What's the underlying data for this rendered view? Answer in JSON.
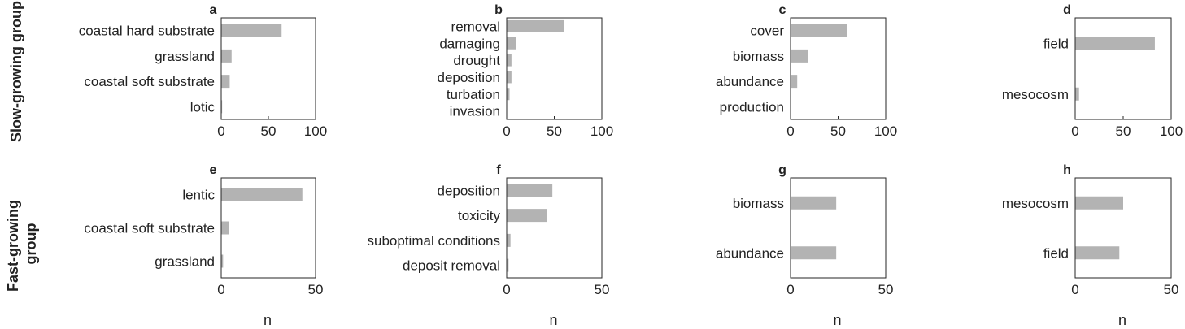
{
  "row_labels": [
    "Slow-growing group",
    "Fast-growing group"
  ],
  "colors": {
    "bar": "#b3b3b3",
    "axis": "#262626"
  },
  "chart_data": [
    {
      "type": "bar",
      "orientation": "horizontal",
      "panel": "a",
      "categories": [
        "coastal hard substrate",
        "grassland",
        "coastal soft substrate",
        "lotic"
      ],
      "values": [
        64,
        11,
        9,
        1
      ],
      "xlim": [
        0,
        100
      ],
      "xticks": [
        0,
        50,
        100
      ],
      "xlabel": ""
    },
    {
      "type": "bar",
      "orientation": "horizontal",
      "panel": "b",
      "categories": [
        "removal",
        "damaging",
        "drought",
        "deposition",
        "turbation",
        "invasion"
      ],
      "values": [
        60,
        10,
        5,
        5,
        3,
        0
      ],
      "xlim": [
        0,
        100
      ],
      "xticks": [
        0,
        50,
        100
      ],
      "xlabel": ""
    },
    {
      "type": "bar",
      "orientation": "horizontal",
      "panel": "c",
      "categories": [
        "cover",
        "biomass",
        "abundance",
        "production"
      ],
      "values": [
        59,
        18,
        7,
        0
      ],
      "xlim": [
        0,
        100
      ],
      "xticks": [
        0,
        50,
        100
      ],
      "xlabel": ""
    },
    {
      "type": "bar",
      "orientation": "horizontal",
      "panel": "d",
      "categories": [
        "field",
        "mesocosm"
      ],
      "values": [
        83,
        4
      ],
      "xlim": [
        0,
        100
      ],
      "xticks": [
        0,
        50,
        100
      ],
      "xlabel": ""
    },
    {
      "type": "bar",
      "orientation": "horizontal",
      "panel": "e",
      "categories": [
        "lentic",
        "coastal soft substrate",
        "grassland"
      ],
      "values": [
        43,
        4,
        1
      ],
      "xlim": [
        0,
        50
      ],
      "xticks": [
        0,
        50
      ],
      "xlabel": "n"
    },
    {
      "type": "bar",
      "orientation": "horizontal",
      "panel": "f",
      "categories": [
        "deposition",
        "toxicity",
        "suboptimal conditions",
        "deposit removal"
      ],
      "values": [
        24,
        21,
        2,
        1
      ],
      "xlim": [
        0,
        50
      ],
      "xticks": [
        0,
        50
      ],
      "xlabel": "n"
    },
    {
      "type": "bar",
      "orientation": "horizontal",
      "panel": "g",
      "categories": [
        "biomass",
        "abundance"
      ],
      "values": [
        24,
        24
      ],
      "xlim": [
        0,
        50
      ],
      "xticks": [
        0,
        50
      ],
      "xlabel": "n"
    },
    {
      "type": "bar",
      "orientation": "horizontal",
      "panel": "h",
      "categories": [
        "mesocosm",
        "field"
      ],
      "values": [
        25,
        23
      ],
      "xlim": [
        0,
        50
      ],
      "xticks": [
        0,
        50
      ],
      "xlabel": "n"
    }
  ]
}
